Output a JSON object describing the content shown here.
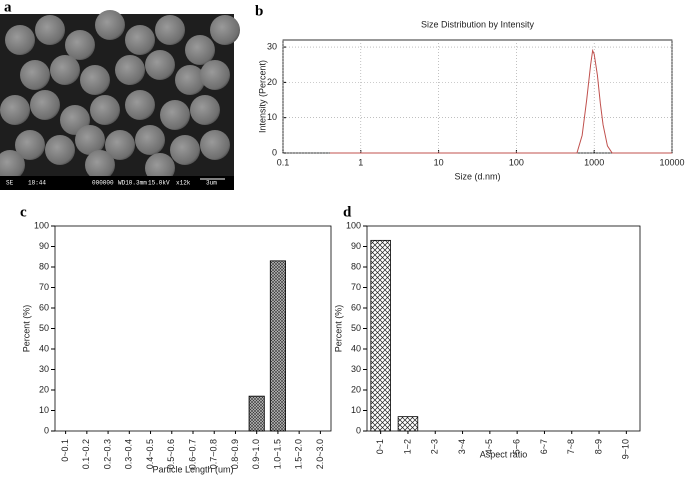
{
  "image": {
    "label": "a",
    "caption": [
      "SE",
      "18:44",
      "000000",
      "WD10.3mm",
      "15.0kV",
      "x12k",
      "3um"
    ]
  },
  "chart_data": [
    {
      "type": "line",
      "label": "b",
      "title": "Size Distribution by Intensity",
      "xlabel": "Size (d.nm)",
      "ylabel": "Intensity (Percent)",
      "xscale": "log",
      "grid": true,
      "color": "#c0504d",
      "x": [
        0.4,
        1,
        10,
        100,
        500,
        600,
        700,
        800,
        900,
        955,
        1000,
        1100,
        1200,
        1300,
        1480,
        1700,
        3000,
        10000
      ],
      "values": [
        0,
        0,
        0,
        0,
        0,
        0,
        5,
        15,
        25,
        29,
        28,
        22,
        14,
        8,
        2,
        0,
        0,
        0
      ],
      "xlim": [
        0.1,
        10000
      ],
      "xticks": [
        0.1,
        1,
        10,
        100,
        1000,
        10000
      ],
      "ylim": [
        0,
        32
      ],
      "yticks": [
        0,
        10,
        20,
        30
      ]
    },
    {
      "type": "bar",
      "label": "c",
      "xlabel": "Particle Length (um)",
      "ylabel": "Percent (%)",
      "hatch": "fine",
      "color": "#000000",
      "categories": [
        "0~0.1",
        "0.1~0.2",
        "0.2~0.3",
        "0.3~0.4",
        "0.4~0.5",
        "0.5~0.6",
        "0.6~0.7",
        "0.7~0.8",
        "0.8~0.9",
        "0.9~1.0",
        "1.0~1.5",
        "1.5~2.0",
        "2.0~3.0"
      ],
      "values": [
        0,
        0,
        0,
        0,
        0,
        0,
        0,
        0,
        0,
        17,
        83,
        0,
        0
      ],
      "ylim": [
        0,
        100
      ],
      "yticks": [
        0,
        10,
        20,
        30,
        40,
        50,
        60,
        70,
        80,
        90,
        100
      ]
    },
    {
      "type": "bar",
      "label": "d",
      "xlabel": "Aspect ratio",
      "ylabel": "Percent (%)",
      "hatch": "cross",
      "color": "#000000",
      "categories": [
        "0~1",
        "1~2",
        "2~3",
        "3~4",
        "4~5",
        "5~6",
        "6~7",
        "7~8",
        "8~9",
        "9~10"
      ],
      "values": [
        93,
        7,
        0,
        0,
        0,
        0,
        0,
        0,
        0,
        0
      ],
      "ylim": [
        0,
        100
      ],
      "yticks": [
        0,
        10,
        20,
        30,
        40,
        50,
        60,
        70,
        80,
        90,
        100
      ]
    }
  ]
}
